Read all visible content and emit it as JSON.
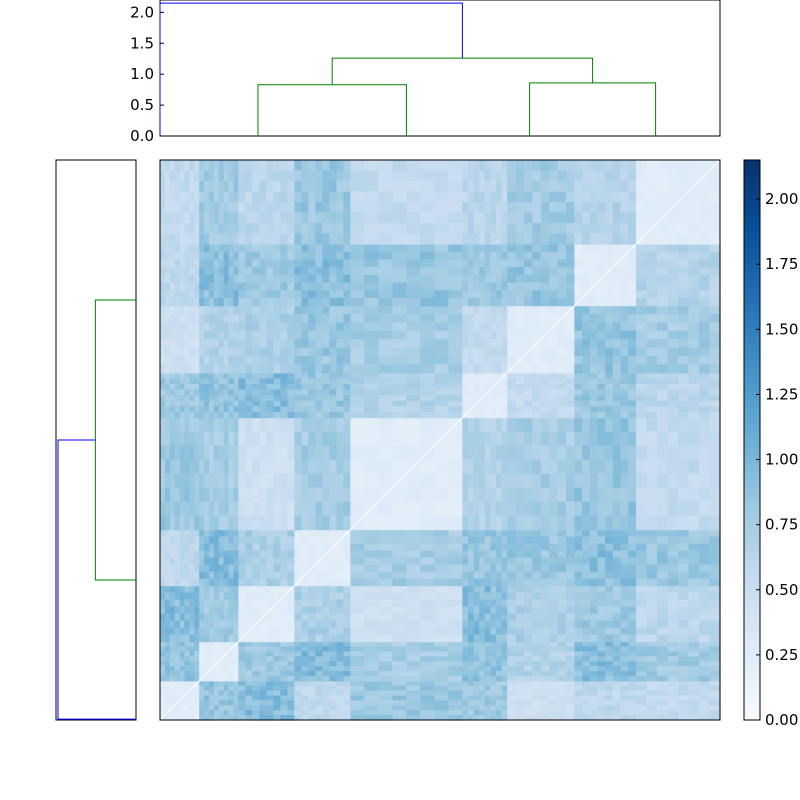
{
  "chart_data": [
    {
      "type": "dendrogram",
      "orientation": "top",
      "ylim": [
        0,
        2.2
      ],
      "yticks": [
        0.0,
        0.5,
        1.0,
        1.5,
        2.0
      ],
      "ytick_labels": [
        "0.0",
        "0.5",
        "1.0",
        "1.5",
        "2.0"
      ],
      "leaf_count": 600,
      "top_merge": {
        "height": 2.15,
        "left_children_height": 0.0,
        "right_children_height": 1.26
      },
      "cluster_merges": [
        {
          "height": 1.26,
          "left": 0.83,
          "right": 1.02
        },
        {
          "height": 1.02,
          "left": 0.87,
          "right": 0.86
        },
        {
          "height": 0.86,
          "left": 0.85,
          "right": 0.83
        }
      ],
      "link_colors": {
        "top": "#0000ff",
        "clusters": "#008000"
      }
    },
    {
      "type": "dendrogram",
      "orientation": "left",
      "leaf_count": 600,
      "top_merge": {
        "height": 2.15,
        "split_fraction": 0.52
      },
      "link_colors": {
        "top": "#0000ff",
        "clusters": "#008000"
      }
    },
    {
      "type": "heatmap",
      "rows": 600,
      "cols": 600,
      "colormap": "Blues",
      "vmin": 0.0,
      "vmax": 2.15,
      "diagonal": 0.0,
      "block_boundaries": [
        0.0,
        0.07,
        0.14,
        0.24,
        0.34,
        0.54,
        0.62,
        0.74,
        0.85,
        1.0
      ],
      "block_distance_within": 0.25,
      "block_distance_between": 0.7
    },
    {
      "type": "colorbar",
      "vmin": 0.0,
      "vmax": 2.15,
      "ticks": [
        0.0,
        0.25,
        0.5,
        0.75,
        1.0,
        1.25,
        1.5,
        1.75,
        2.0
      ],
      "tick_labels": [
        "0.00",
        "0.25",
        "0.50",
        "0.75",
        "1.00",
        "1.25",
        "1.50",
        "1.75",
        "2.00"
      ]
    }
  ]
}
